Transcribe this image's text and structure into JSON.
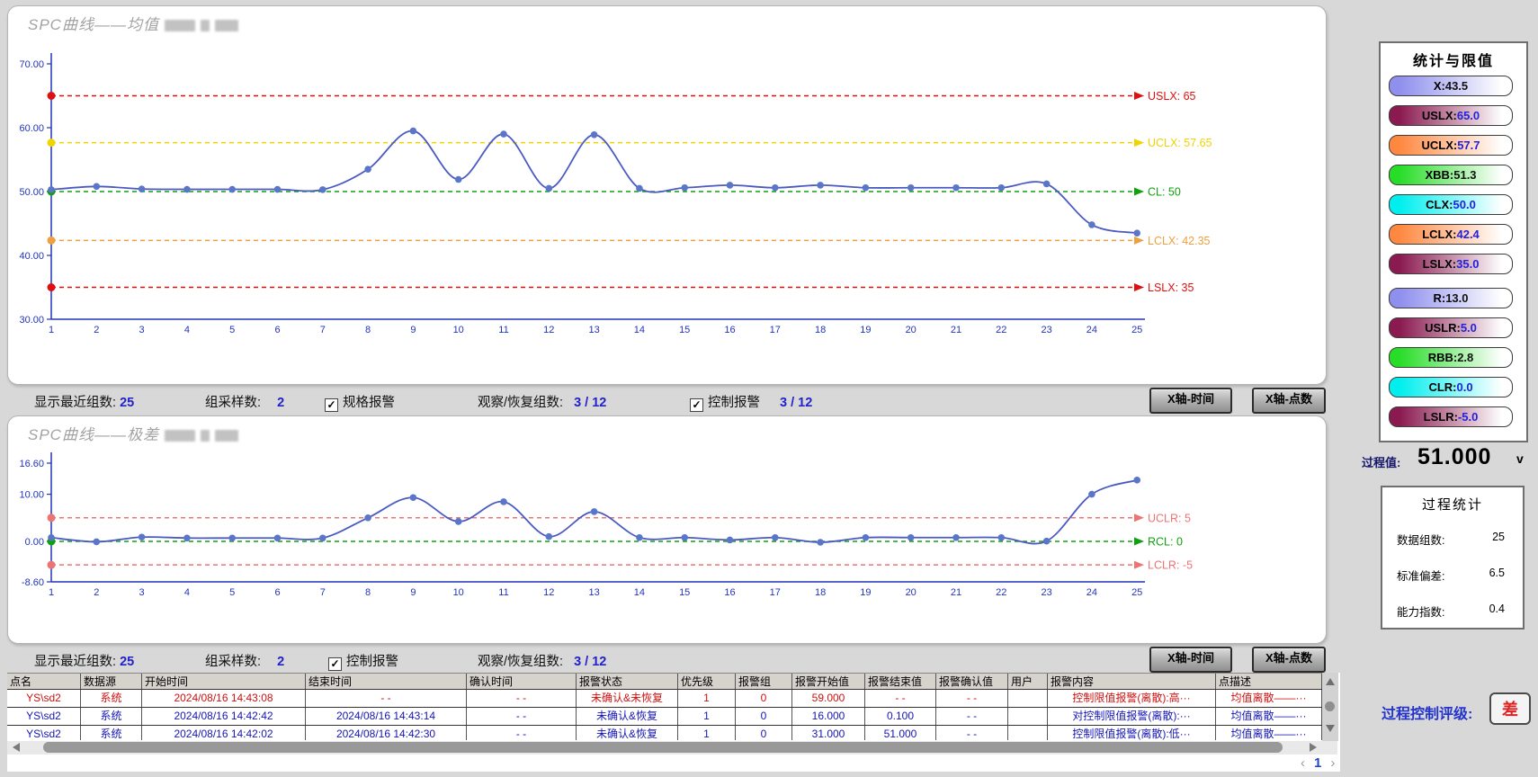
{
  "chart_data": [
    {
      "type": "line",
      "title": "SPC曲线——均值",
      "x": [
        1,
        2,
        3,
        4,
        5,
        6,
        7,
        8,
        9,
        10,
        11,
        12,
        13,
        14,
        15,
        16,
        17,
        18,
        19,
        20,
        21,
        22,
        23,
        24,
        25
      ],
      "series": [
        {
          "name": "均值",
          "values": [
            50.3,
            50.8,
            50.4,
            50.35,
            50.35,
            50.35,
            50.3,
            53.5,
            59.5,
            51.9,
            59.0,
            50.5,
            58.9,
            50.5,
            50.6,
            51.0,
            50.6,
            51.0,
            50.6,
            50.6,
            50.6,
            50.6,
            51.2,
            44.8,
            43.5
          ]
        }
      ],
      "ylim": [
        30,
        70
      ],
      "y_ticks": [
        70,
        60,
        50,
        40,
        30
      ],
      "y_tick_labels": [
        "70.00",
        "60.00",
        "50.00",
        "40.00",
        "30.00"
      ],
      "ref_lines": [
        {
          "name": "USLX",
          "label": "USLX: 65",
          "value": 65,
          "color": "#dd1111"
        },
        {
          "name": "UCLX",
          "label": "UCLX: 57.65",
          "value": 57.65,
          "color": "#f0d400"
        },
        {
          "name": "CL",
          "label": "CL: 50",
          "value": 50,
          "color": "#0fa00f"
        },
        {
          "name": "LCLX",
          "label": "LCLX: 42.35",
          "value": 42.35,
          "color": "#eda040"
        },
        {
          "name": "LSLX",
          "label": "LSLX: 35",
          "value": 35,
          "color": "#dd1111"
        }
      ],
      "line_color": "#4a5ac2",
      "point_color": "#5b76c8",
      "axis_color": "#2233bb",
      "legend_position": "none",
      "grid": false
    },
    {
      "type": "line",
      "title": "SPC曲线——极差",
      "x": [
        1,
        2,
        3,
        4,
        5,
        6,
        7,
        8,
        9,
        10,
        11,
        12,
        13,
        14,
        15,
        16,
        17,
        18,
        19,
        20,
        21,
        22,
        23,
        24,
        25
      ],
      "series": [
        {
          "name": "极差",
          "values": [
            0.8,
            -0.1,
            0.9,
            0.7,
            0.7,
            0.7,
            0.7,
            5.0,
            9.3,
            4.2,
            8.4,
            1.0,
            6.3,
            0.8,
            0.8,
            0.3,
            0.8,
            -0.2,
            0.8,
            0.8,
            0.8,
            0.8,
            0.05,
            10.0,
            13.0
          ]
        }
      ],
      "ylim": [
        -8.6,
        16.6
      ],
      "y_ticks": [
        16.6,
        10,
        0,
        -8.6
      ],
      "y_tick_labels": [
        "16.60",
        "10.00",
        "0.00",
        "-8.60"
      ],
      "ref_lines": [
        {
          "name": "UCLR",
          "label": "UCLR: 5",
          "value": 5,
          "color": "#ec7474"
        },
        {
          "name": "RCL",
          "label": "RCL: 0",
          "value": 0,
          "color": "#0fa00f"
        },
        {
          "name": "LCLR",
          "label": "LCLR: -5",
          "value": -5,
          "color": "#ec7474"
        }
      ],
      "line_color": "#4a5ac2",
      "point_color": "#5b76c8",
      "axis_color": "#2233bb",
      "legend_position": "none",
      "grid": false
    }
  ],
  "controls_top": {
    "recent_label": "显示最近组数:",
    "recent_value": "25",
    "sample_label": "组采样数:",
    "sample_value": "2",
    "spec_alarm_label": "规格报警",
    "spec_alarm_checked": "✓",
    "observe_label": "观察/恢复组数:",
    "observe_value": "3 / 12",
    "ctrl_alarm_label": "控制报警",
    "ctrl_alarm_checked": "✓",
    "ctrl_alarm_value": "3 / 12",
    "btn_time": "X轴-时间",
    "btn_points": "X轴-点数"
  },
  "controls_bottom": {
    "recent_label": "显示最近组数:",
    "recent_value": "25",
    "sample_label": "组采样数:",
    "sample_value": "2",
    "ctrl_alarm_label": "控制报警",
    "ctrl_alarm_checked": "✓",
    "observe_label": "观察/恢复组数:",
    "observe_value": "3 / 12",
    "btn_time": "X轴-时间",
    "btn_points": "X轴-点数"
  },
  "alarm_table": {
    "columns": [
      "点名",
      "数据源",
      "开始时间",
      "结束时间",
      "确认时间",
      "报警状态",
      "优先级",
      "报警组",
      "报警开始值",
      "报警结束值",
      "报警确认值",
      "用户",
      "报警内容",
      "点描述"
    ],
    "rows": [
      {
        "state": "active",
        "color": "#cc1111",
        "cells": [
          "YS\\sd2",
          "系统",
          "2024/08/16 14:43:08",
          "- -",
          "- -",
          "未确认&未恢复",
          "1",
          "0",
          "59.000",
          "- -",
          "- -",
          "",
          "控制限值报警(离散):高···",
          "均值离散——···"
        ]
      },
      {
        "state": "recovered",
        "color": "#1515b5",
        "cells": [
          "YS\\sd2",
          "系统",
          "2024/08/16 14:42:42",
          "2024/08/16 14:43:14",
          "- -",
          "未确认&恢复",
          "1",
          "0",
          "16.000",
          "0.100",
          "- -",
          "",
          "对控制限值报警(离散):···",
          "均值离散——···"
        ]
      },
      {
        "state": "recovered",
        "color": "#1515b5",
        "cells": [
          "YS\\sd2",
          "系统",
          "2024/08/16 14:42:02",
          "2024/08/16 14:42:30",
          "- -",
          "未确认&恢复",
          "1",
          "0",
          "31.000",
          "51.000",
          "- -",
          "",
          "控制限值报警(离散):低···",
          "均值离散——···"
        ]
      }
    ]
  },
  "pagination": {
    "prev": "‹",
    "page": "1",
    "next": "›"
  },
  "sidebar": {
    "stats_title": "统计与限值",
    "stat_bars": [
      {
        "label": "X",
        "value": "43.5",
        "color": "#8f8fee",
        "value_color": "#111111",
        "group": 1
      },
      {
        "label": "USLX",
        "value": "65.0",
        "color": "#8a1a50",
        "value_color": "#2222dd",
        "group": 1
      },
      {
        "label": "UCLX",
        "value": "57.7",
        "color": "#ff8840",
        "value_color": "#2222dd",
        "group": 1
      },
      {
        "label": "XBB",
        "value": "51.3",
        "color": "#28dd28",
        "value_color": "#111111",
        "group": 1
      },
      {
        "label": "CLX",
        "value": "50.0",
        "color": "#00eeee",
        "value_color": "#2222dd",
        "group": 1
      },
      {
        "label": "LCLX",
        "value": "42.4",
        "color": "#ff8840",
        "value_color": "#2222dd",
        "group": 1
      },
      {
        "label": "LSLX",
        "value": "35.0",
        "color": "#8a1a50",
        "value_color": "#2222dd",
        "group": 1
      },
      {
        "label": "R",
        "value": "13.0",
        "color": "#8f8fee",
        "value_color": "#111111",
        "group": 2
      },
      {
        "label": "USLR",
        "value": "5.0",
        "color": "#8a1a50",
        "value_color": "#2222dd",
        "group": 2
      },
      {
        "label": "RBB",
        "value": "2.8",
        "color": "#28dd28",
        "value_color": "#111111",
        "group": 2
      },
      {
        "label": "CLR",
        "value": "0.0",
        "color": "#00eeee",
        "value_color": "#2222dd",
        "group": 2
      },
      {
        "label": "LSLR",
        "value": "-5.0",
        "color": "#8a1a50",
        "value_color": "#2222dd",
        "group": 2
      }
    ],
    "process_value_label": "过程值:",
    "process_value": "51.000",
    "process_value_unit": "v",
    "process_stats_title": "过程统计",
    "process_stats": [
      {
        "label": "数据组数:",
        "value": "25"
      },
      {
        "label": "标准偏差:",
        "value": "6.5"
      },
      {
        "label": "能力指数:",
        "value": "0.4"
      }
    ],
    "rating_label": "过程控制评级:",
    "rating_value": "差"
  }
}
